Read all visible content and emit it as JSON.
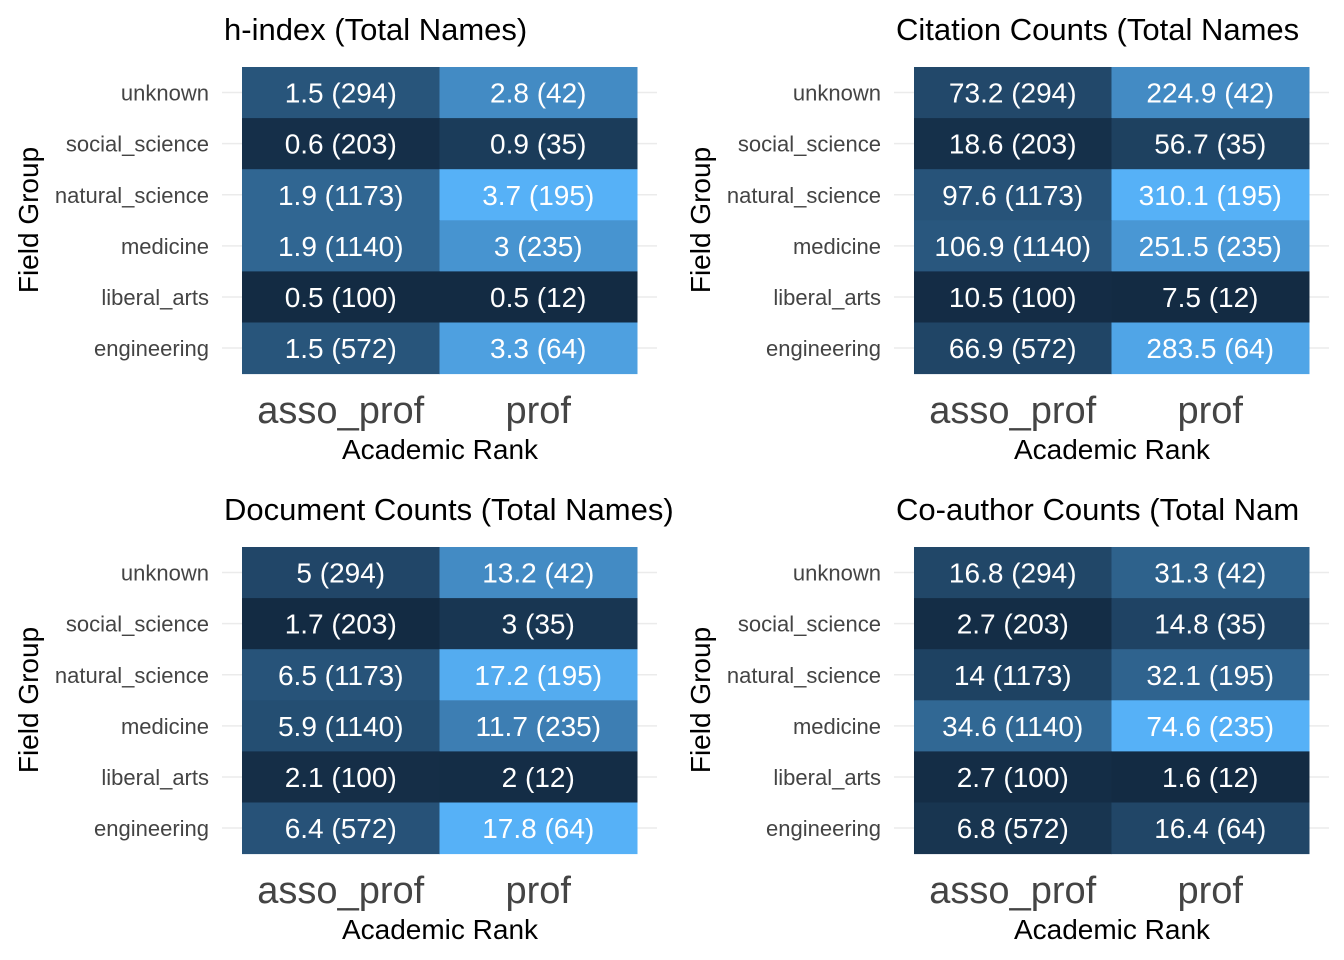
{
  "chart_data": [
    {
      "type": "heatmap",
      "title": "h-index (Total Names)",
      "xlabel": "Academic Rank",
      "ylabel": "Field Group",
      "x_categories": [
        "asso_prof",
        "prof"
      ],
      "y_categories": [
        "engineering",
        "liberal_arts",
        "medicine",
        "natural_science",
        "social_science",
        "unknown"
      ],
      "cells": [
        {
          "x": "asso_prof",
          "y": "unknown",
          "value": 1.5,
          "n": 294,
          "label": "1.5 (294)"
        },
        {
          "x": "prof",
          "y": "unknown",
          "value": 2.8,
          "n": 42,
          "label": "2.8 (42)"
        },
        {
          "x": "asso_prof",
          "y": "social_science",
          "value": 0.6,
          "n": 203,
          "label": "0.6 (203)"
        },
        {
          "x": "prof",
          "y": "social_science",
          "value": 0.9,
          "n": 35,
          "label": "0.9 (35)"
        },
        {
          "x": "asso_prof",
          "y": "natural_science",
          "value": 1.9,
          "n": 1173,
          "label": "1.9 (1173)"
        },
        {
          "x": "prof",
          "y": "natural_science",
          "value": 3.7,
          "n": 195,
          "label": "3.7 (195)"
        },
        {
          "x": "asso_prof",
          "y": "medicine",
          "value": 1.9,
          "n": 1140,
          "label": "1.9 (1140)"
        },
        {
          "x": "prof",
          "y": "medicine",
          "value": 3,
          "n": 235,
          "label": "3 (235)"
        },
        {
          "x": "asso_prof",
          "y": "liberal_arts",
          "value": 0.5,
          "n": 100,
          "label": "0.5 (100)"
        },
        {
          "x": "prof",
          "y": "liberal_arts",
          "value": 0.5,
          "n": 12,
          "label": "0.5 (12)"
        },
        {
          "x": "asso_prof",
          "y": "engineering",
          "value": 1.5,
          "n": 572,
          "label": "1.5 (572)"
        },
        {
          "x": "prof",
          "y": "engineering",
          "value": 3.3,
          "n": 64,
          "label": "3.3 (64)"
        }
      ]
    },
    {
      "type": "heatmap",
      "title": "Citation Counts (Total Names",
      "xlabel": "Academic Rank",
      "ylabel": "Field Group",
      "x_categories": [
        "asso_prof",
        "prof"
      ],
      "y_categories": [
        "engineering",
        "liberal_arts",
        "medicine",
        "natural_science",
        "social_science",
        "unknown"
      ],
      "cells": [
        {
          "x": "asso_prof",
          "y": "unknown",
          "value": 73.2,
          "n": 294,
          "label": "73.2 (294)"
        },
        {
          "x": "prof",
          "y": "unknown",
          "value": 224.9,
          "n": 42,
          "label": "224.9 (42)"
        },
        {
          "x": "asso_prof",
          "y": "social_science",
          "value": 18.6,
          "n": 203,
          "label": "18.6 (203)"
        },
        {
          "x": "prof",
          "y": "social_science",
          "value": 56.7,
          "n": 35,
          "label": "56.7 (35)"
        },
        {
          "x": "asso_prof",
          "y": "natural_science",
          "value": 97.6,
          "n": 1173,
          "label": "97.6 (1173)"
        },
        {
          "x": "prof",
          "y": "natural_science",
          "value": 310.1,
          "n": 195,
          "label": "310.1 (195)"
        },
        {
          "x": "asso_prof",
          "y": "medicine",
          "value": 106.9,
          "n": 1140,
          "label": "106.9 (1140)"
        },
        {
          "x": "prof",
          "y": "medicine",
          "value": 251.5,
          "n": 235,
          "label": "251.5 (235)"
        },
        {
          "x": "asso_prof",
          "y": "liberal_arts",
          "value": 10.5,
          "n": 100,
          "label": "10.5 (100)"
        },
        {
          "x": "prof",
          "y": "liberal_arts",
          "value": 7.5,
          "n": 12,
          "label": "7.5 (12)"
        },
        {
          "x": "asso_prof",
          "y": "engineering",
          "value": 66.9,
          "n": 572,
          "label": "66.9 (572)"
        },
        {
          "x": "prof",
          "y": "engineering",
          "value": 283.5,
          "n": 64,
          "label": "283.5 (64)"
        }
      ]
    },
    {
      "type": "heatmap",
      "title": "Document Counts (Total Names)",
      "xlabel": "Academic Rank",
      "ylabel": "Field Group",
      "x_categories": [
        "asso_prof",
        "prof"
      ],
      "y_categories": [
        "engineering",
        "liberal_arts",
        "medicine",
        "natural_science",
        "social_science",
        "unknown"
      ],
      "cells": [
        {
          "x": "asso_prof",
          "y": "unknown",
          "value": 5,
          "n": 294,
          "label": "5 (294)"
        },
        {
          "x": "prof",
          "y": "unknown",
          "value": 13.2,
          "n": 42,
          "label": "13.2 (42)"
        },
        {
          "x": "asso_prof",
          "y": "social_science",
          "value": 1.7,
          "n": 203,
          "label": "1.7 (203)"
        },
        {
          "x": "prof",
          "y": "social_science",
          "value": 3,
          "n": 35,
          "label": "3 (35)"
        },
        {
          "x": "asso_prof",
          "y": "natural_science",
          "value": 6.5,
          "n": 1173,
          "label": "6.5 (1173)"
        },
        {
          "x": "prof",
          "y": "natural_science",
          "value": 17.2,
          "n": 195,
          "label": "17.2 (195)"
        },
        {
          "x": "asso_prof",
          "y": "medicine",
          "value": 5.9,
          "n": 1140,
          "label": "5.9 (1140)"
        },
        {
          "x": "prof",
          "y": "medicine",
          "value": 11.7,
          "n": 235,
          "label": "11.7 (235)"
        },
        {
          "x": "asso_prof",
          "y": "liberal_arts",
          "value": 2.1,
          "n": 100,
          "label": "2.1 (100)"
        },
        {
          "x": "prof",
          "y": "liberal_arts",
          "value": 2,
          "n": 12,
          "label": "2 (12)"
        },
        {
          "x": "asso_prof",
          "y": "engineering",
          "value": 6.4,
          "n": 572,
          "label": "6.4 (572)"
        },
        {
          "x": "prof",
          "y": "engineering",
          "value": 17.8,
          "n": 64,
          "label": "17.8 (64)"
        }
      ]
    },
    {
      "type": "heatmap",
      "title": "Co-author Counts (Total Nam",
      "xlabel": "Academic Rank",
      "ylabel": "Field Group",
      "x_categories": [
        "asso_prof",
        "prof"
      ],
      "y_categories": [
        "engineering",
        "liberal_arts",
        "medicine",
        "natural_science",
        "social_science",
        "unknown"
      ],
      "cells": [
        {
          "x": "asso_prof",
          "y": "unknown",
          "value": 16.8,
          "n": 294,
          "label": "16.8 (294)"
        },
        {
          "x": "prof",
          "y": "unknown",
          "value": 31.3,
          "n": 42,
          "label": "31.3 (42)"
        },
        {
          "x": "asso_prof",
          "y": "social_science",
          "value": 2.7,
          "n": 203,
          "label": "2.7 (203)"
        },
        {
          "x": "prof",
          "y": "social_science",
          "value": 14.8,
          "n": 35,
          "label": "14.8 (35)"
        },
        {
          "x": "asso_prof",
          "y": "natural_science",
          "value": 14,
          "n": 1173,
          "label": "14 (1173)"
        },
        {
          "x": "prof",
          "y": "natural_science",
          "value": 32.1,
          "n": 195,
          "label": "32.1 (195)"
        },
        {
          "x": "asso_prof",
          "y": "medicine",
          "value": 34.6,
          "n": 1140,
          "label": "34.6 (1140)"
        },
        {
          "x": "prof",
          "y": "medicine",
          "value": 74.6,
          "n": 235,
          "label": "74.6 (235)"
        },
        {
          "x": "asso_prof",
          "y": "liberal_arts",
          "value": 2.7,
          "n": 100,
          "label": "2.7 (100)"
        },
        {
          "x": "prof",
          "y": "liberal_arts",
          "value": 1.6,
          "n": 12,
          "label": "1.6 (12)"
        },
        {
          "x": "asso_prof",
          "y": "engineering",
          "value": 6.8,
          "n": 572,
          "label": "6.8 (572)"
        },
        {
          "x": "prof",
          "y": "engineering",
          "value": 16.4,
          "n": 64,
          "label": "16.4 (64)"
        }
      ]
    }
  ],
  "colors": {
    "low": "#132B43",
    "high": "#56B1F7",
    "grid": "#ebebeb",
    "label_text": "#ffffff"
  }
}
